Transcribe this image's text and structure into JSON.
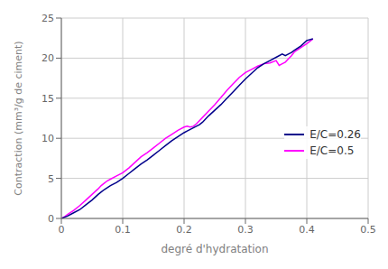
{
  "chart_data": {
    "type": "line",
    "title": "",
    "xlabel": "degré d'hydratation",
    "ylabel": "Contraction (mm³/g de ciment)",
    "xlim": [
      0,
      0.5
    ],
    "ylim": [
      0,
      25
    ],
    "xticks": [
      0,
      0.1,
      0.2,
      0.3,
      0.4,
      0.5
    ],
    "yticks": [
      0,
      5,
      10,
      15,
      20,
      25
    ],
    "grid": true,
    "series": [
      {
        "name": "E/C=0.26",
        "color": "#00008B",
        "x": [
          0.0,
          0.005,
          0.01,
          0.02,
          0.03,
          0.04,
          0.05,
          0.06,
          0.065,
          0.07,
          0.08,
          0.09,
          0.1,
          0.11,
          0.12,
          0.13,
          0.14,
          0.15,
          0.16,
          0.17,
          0.18,
          0.19,
          0.2,
          0.205,
          0.21,
          0.215,
          0.22,
          0.225,
          0.23,
          0.24,
          0.25,
          0.26,
          0.27,
          0.28,
          0.29,
          0.3,
          0.31,
          0.32,
          0.33,
          0.34,
          0.35,
          0.36,
          0.365,
          0.37,
          0.375,
          0.38,
          0.39,
          0.4,
          0.41
        ],
        "values": [
          0.0,
          0.15,
          0.3,
          0.7,
          1.1,
          1.7,
          2.3,
          3.0,
          3.3,
          3.6,
          4.1,
          4.5,
          5.0,
          5.6,
          6.2,
          6.8,
          7.3,
          7.9,
          8.5,
          9.1,
          9.7,
          10.2,
          10.7,
          10.9,
          11.1,
          11.3,
          11.5,
          11.7,
          12.0,
          12.8,
          13.5,
          14.2,
          15.0,
          15.8,
          16.6,
          17.4,
          18.1,
          18.8,
          19.3,
          19.7,
          20.1,
          20.5,
          20.3,
          20.5,
          20.7,
          21.0,
          21.5,
          22.2,
          22.4
        ]
      },
      {
        "name": "E/C=0.5",
        "color": "#FF00FF",
        "x": [
          0.0,
          0.005,
          0.01,
          0.02,
          0.03,
          0.04,
          0.05,
          0.06,
          0.065,
          0.07,
          0.075,
          0.08,
          0.09,
          0.1,
          0.11,
          0.12,
          0.13,
          0.14,
          0.15,
          0.16,
          0.17,
          0.18,
          0.19,
          0.2,
          0.205,
          0.21,
          0.215,
          0.22,
          0.225,
          0.23,
          0.24,
          0.25,
          0.26,
          0.27,
          0.28,
          0.29,
          0.3,
          0.31,
          0.32,
          0.33,
          0.34,
          0.35,
          0.355,
          0.36,
          0.365,
          0.37,
          0.375,
          0.38,
          0.39,
          0.4,
          0.41
        ],
        "values": [
          0.0,
          0.2,
          0.5,
          1.0,
          1.6,
          2.3,
          3.0,
          3.7,
          4.1,
          4.4,
          4.7,
          4.9,
          5.3,
          5.7,
          6.3,
          7.0,
          7.7,
          8.2,
          8.8,
          9.4,
          10.0,
          10.5,
          11.0,
          11.4,
          11.5,
          11.4,
          11.5,
          11.8,
          12.2,
          12.6,
          13.4,
          14.2,
          15.1,
          16.0,
          16.8,
          17.6,
          18.2,
          18.6,
          19.0,
          19.3,
          19.4,
          19.7,
          19.1,
          19.3,
          19.5,
          19.9,
          20.3,
          20.8,
          21.3,
          21.8,
          22.4
        ]
      }
    ]
  }
}
